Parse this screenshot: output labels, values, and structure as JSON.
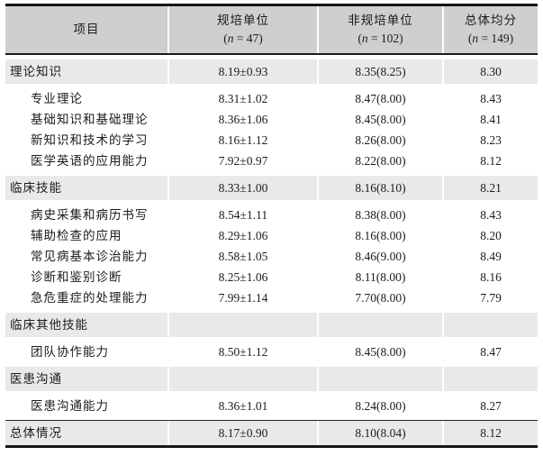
{
  "table": {
    "columns": [
      {
        "label": "项目"
      },
      {
        "label": "规培单位",
        "n_open": "(",
        "n_var": "n",
        "n_rest": " = 47)"
      },
      {
        "label": "非规培单位",
        "n_open": "(",
        "n_var": "n",
        "n_rest": " = 102)"
      },
      {
        "label": "总体均分",
        "n_open": "(",
        "n_var": "n",
        "n_rest": " = 149)"
      }
    ],
    "rows": [
      {
        "type": "section",
        "label": "理论知识",
        "v1": "8.19±0.93",
        "v2": "8.35(8.25)",
        "v3": "8.30"
      },
      {
        "type": "sub",
        "label": "专业理论",
        "v1": "8.31±1.02",
        "v2": "8.47(8.00)",
        "v3": "8.43"
      },
      {
        "type": "sub",
        "label": "基础知识和基础理论",
        "v1": "8.36±1.06",
        "v2": "8.45(8.00)",
        "v3": "8.41"
      },
      {
        "type": "sub",
        "label": "新知识和技术的学习",
        "v1": "8.16±1.12",
        "v2": "8.26(8.00)",
        "v3": "8.23"
      },
      {
        "type": "sub",
        "label": "医学英语的应用能力",
        "v1": "7.92±0.97",
        "v2": "8.22(8.00)",
        "v3": "8.12"
      },
      {
        "type": "section",
        "label": "临床技能",
        "v1": "8.33±1.00",
        "v2": "8.16(8.10)",
        "v3": "8.21"
      },
      {
        "type": "sub",
        "label": "病史采集和病历书写",
        "v1": "8.54±1.11",
        "v2": "8.38(8.00)",
        "v3": "8.43"
      },
      {
        "type": "sub",
        "label": "辅助检查的应用",
        "v1": "8.29±1.06",
        "v2": "8.16(8.00)",
        "v3": "8.20"
      },
      {
        "type": "sub",
        "label": "常见病基本诊治能力",
        "v1": "8.58±1.05",
        "v2": "8.46(9.00)",
        "v3": "8.49"
      },
      {
        "type": "sub",
        "label": "诊断和鉴别诊断",
        "v1": "8.25±1.06",
        "v2": "8.11(8.00)",
        "v3": "8.16"
      },
      {
        "type": "sub",
        "label": "急危重症的处理能力",
        "v1": "7.99±1.14",
        "v2": "7.70(8.00)",
        "v3": "7.79"
      },
      {
        "type": "section",
        "label": "临床其他技能",
        "v1": "",
        "v2": "",
        "v3": ""
      },
      {
        "type": "sub",
        "label": "团队协作能力",
        "v1": "8.50±1.12",
        "v2": "8.45(8.00)",
        "v3": "8.47"
      },
      {
        "type": "section",
        "label": "医患沟通",
        "v1": "",
        "v2": "",
        "v3": ""
      },
      {
        "type": "sub",
        "label": "医患沟通能力",
        "v1": "8.36±1.01",
        "v2": "8.24(8.00)",
        "v3": "8.27"
      },
      {
        "type": "section total",
        "label": "总体情况",
        "v1": "8.17±0.90",
        "v2": "8.10(8.04)",
        "v3": "8.12"
      }
    ]
  }
}
